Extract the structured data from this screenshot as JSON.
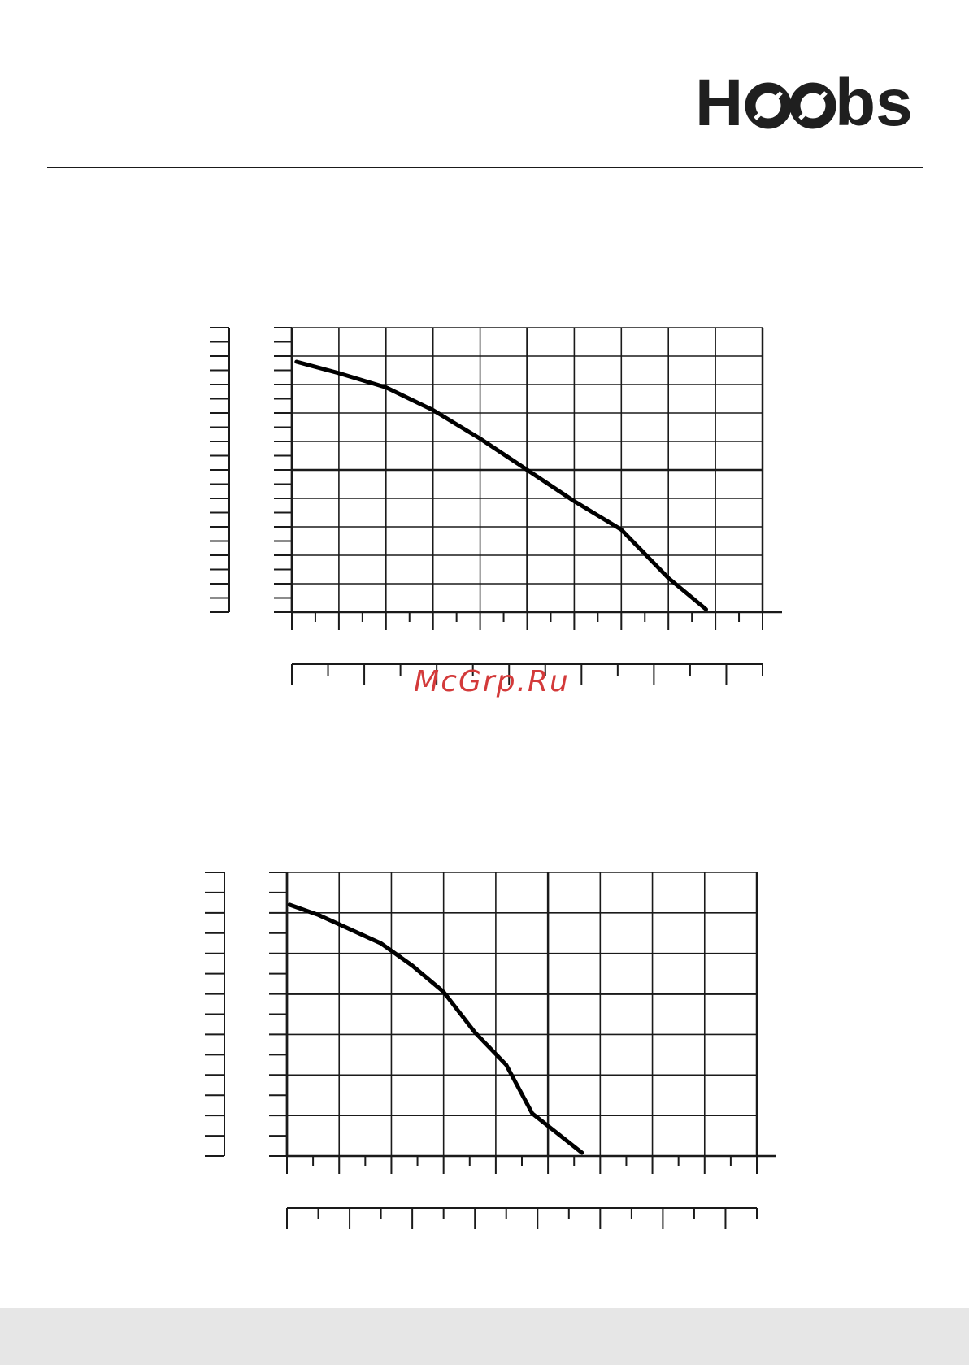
{
  "brand": {
    "logo_text": "Hoobs",
    "color": "#1f1f1f"
  },
  "watermark": {
    "text": "McGrp.Ru",
    "color": "#d33a3a"
  },
  "footer": {
    "background": "#e6e6e6"
  },
  "chart_data": [
    {
      "type": "line",
      "title": "",
      "xlabel": "",
      "ylabel": "",
      "grid": true,
      "xlim": [
        0,
        10
      ],
      "ylim": [
        0,
        10
      ],
      "x_major_gridlines": 10,
      "y_major_gridlines": 10,
      "secondary_x_axis": true,
      "series": [
        {
          "x": [
            0.1,
            1,
            2,
            3,
            4,
            5,
            6,
            7,
            8,
            8.8
          ],
          "y": [
            8.8,
            8.4,
            7.9,
            7.1,
            6.1,
            5.0,
            3.9,
            2.9,
            1.2,
            0.1
          ]
        }
      ]
    },
    {
      "type": "line",
      "title": "",
      "xlabel": "",
      "ylabel": "",
      "grid": true,
      "xlim": [
        0,
        9
      ],
      "ylim": [
        0,
        7
      ],
      "x_major_gridlines": 9,
      "y_major_gridlines": 7,
      "secondary_x_axis": true,
      "series": [
        {
          "x": [
            0.05,
            0.6,
            1.2,
            1.8,
            2.4,
            3.0,
            3.6,
            4.2,
            4.7,
            5.65
          ],
          "y": [
            6.2,
            5.95,
            5.6,
            5.25,
            4.7,
            4.05,
            3.05,
            2.25,
            1.05,
            0.08
          ]
        }
      ]
    }
  ]
}
